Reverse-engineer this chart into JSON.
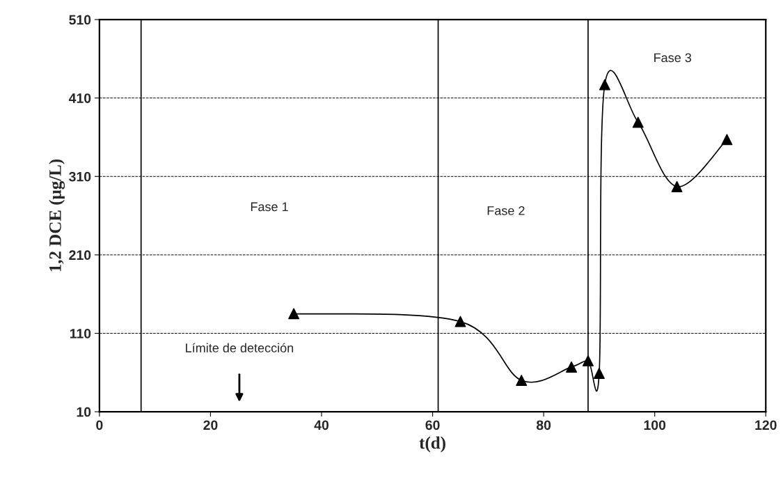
{
  "chart_data": {
    "type": "line",
    "xlabel": "t(d)",
    "ylabel": "1,2 DCE (μg/L)",
    "x": [
      35,
      65,
      76,
      85,
      88,
      90,
      91,
      97,
      104,
      113
    ],
    "series": [
      {
        "color": "#000000",
        "values": [
          135,
          125,
          50,
          67,
          75,
          59,
          427,
          379,
          297,
          357
        ]
      }
    ],
    "marker": "triangle",
    "line_style": "solid",
    "xlim": [
      0,
      120
    ],
    "xticks": [
      0,
      20,
      40,
      60,
      80,
      100,
      120
    ],
    "ylim": [
      10,
      510
    ],
    "yticks": [
      10,
      110,
      210,
      310,
      410,
      510
    ],
    "grid": "y",
    "legend": false,
    "ref_lines": [
      {
        "axis": "x",
        "value": 7.5,
        "color": "#000000"
      },
      {
        "axis": "x",
        "value": 61,
        "color": "#000000"
      },
      {
        "axis": "x",
        "value": 88,
        "color": "#000000"
      }
    ],
    "annotations": [
      "Fase 1",
      "Fase 2",
      "Fase 3",
      "Límite de detección"
    ]
  }
}
